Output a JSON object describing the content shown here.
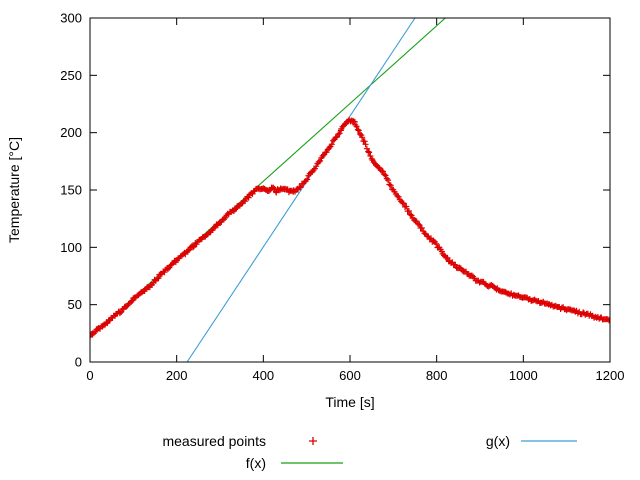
{
  "chart_data": {
    "type": "scatter",
    "title": "",
    "xlabel": "Time [s]",
    "ylabel": "Temperature [°C]",
    "xlim": [
      0,
      1200
    ],
    "ylim": [
      0,
      300
    ],
    "xticks": [
      0,
      200,
      400,
      600,
      800,
      1000,
      1200
    ],
    "yticks": [
      0,
      50,
      100,
      150,
      200,
      250,
      300
    ],
    "grid": false,
    "legend_position": "below-plot",
    "series": {
      "measured": {
        "name": "measured points",
        "marker": "plus",
        "color": "#dc0000",
        "sample_interval_s": 3,
        "jitter_c": 1.2,
        "keypoints": [
          [
            0,
            23
          ],
          [
            20,
            29
          ],
          [
            40,
            35
          ],
          [
            60,
            41
          ],
          [
            80,
            47
          ],
          [
            100,
            55
          ],
          [
            120,
            61
          ],
          [
            140,
            67
          ],
          [
            160,
            75
          ],
          [
            180,
            82
          ],
          [
            200,
            89
          ],
          [
            220,
            95
          ],
          [
            240,
            102
          ],
          [
            260,
            108
          ],
          [
            280,
            114
          ],
          [
            300,
            122
          ],
          [
            320,
            129
          ],
          [
            340,
            135
          ],
          [
            360,
            142
          ],
          [
            380,
            149
          ],
          [
            390,
            152
          ],
          [
            400,
            151
          ],
          [
            410,
            149
          ],
          [
            420,
            152
          ],
          [
            430,
            149
          ],
          [
            440,
            151
          ],
          [
            450,
            150
          ],
          [
            460,
            149
          ],
          [
            470,
            149
          ],
          [
            480,
            151
          ],
          [
            495,
            157
          ],
          [
            510,
            165
          ],
          [
            525,
            173
          ],
          [
            540,
            181
          ],
          [
            555,
            189
          ],
          [
            570,
            197
          ],
          [
            580,
            203
          ],
          [
            590,
            208
          ],
          [
            598,
            211
          ],
          [
            605,
            211
          ],
          [
            612,
            208
          ],
          [
            620,
            202
          ],
          [
            628,
            196
          ],
          [
            636,
            190
          ],
          [
            644,
            182
          ],
          [
            652,
            175
          ],
          [
            660,
            171
          ],
          [
            668,
            169
          ],
          [
            676,
            166
          ],
          [
            688,
            158
          ],
          [
            700,
            150
          ],
          [
            712,
            144
          ],
          [
            724,
            138
          ],
          [
            736,
            131
          ],
          [
            748,
            125
          ],
          [
            760,
            119
          ],
          [
            772,
            113
          ],
          [
            784,
            108
          ],
          [
            796,
            104
          ],
          [
            806,
            99
          ],
          [
            814,
            95
          ],
          [
            822,
            91
          ],
          [
            830,
            88
          ],
          [
            840,
            85
          ],
          [
            850,
            82
          ],
          [
            862,
            79
          ],
          [
            875,
            76
          ],
          [
            890,
            72
          ],
          [
            905,
            69
          ],
          [
            920,
            67
          ],
          [
            940,
            64
          ],
          [
            960,
            61
          ],
          [
            980,
            58
          ],
          [
            1000,
            56
          ],
          [
            1020,
            54
          ],
          [
            1040,
            52
          ],
          [
            1060,
            50
          ],
          [
            1080,
            48
          ],
          [
            1100,
            46
          ],
          [
            1120,
            44
          ],
          [
            1140,
            42
          ],
          [
            1160,
            40
          ],
          [
            1180,
            38
          ],
          [
            1200,
            37
          ]
        ]
      },
      "f": {
        "name": "f(x)",
        "type": "line",
        "color": "#18a018",
        "endpoints": [
          [
            0,
            22
          ],
          [
            820,
            300
          ]
        ]
      },
      "g": {
        "name": "g(x)",
        "type": "line",
        "color": "#3a9fd4",
        "endpoints": [
          [
            224,
            0
          ],
          [
            750,
            300
          ]
        ]
      }
    }
  },
  "legend": {
    "measured_label": "measured points",
    "f_label": "f(x)",
    "g_label": "g(x)"
  }
}
